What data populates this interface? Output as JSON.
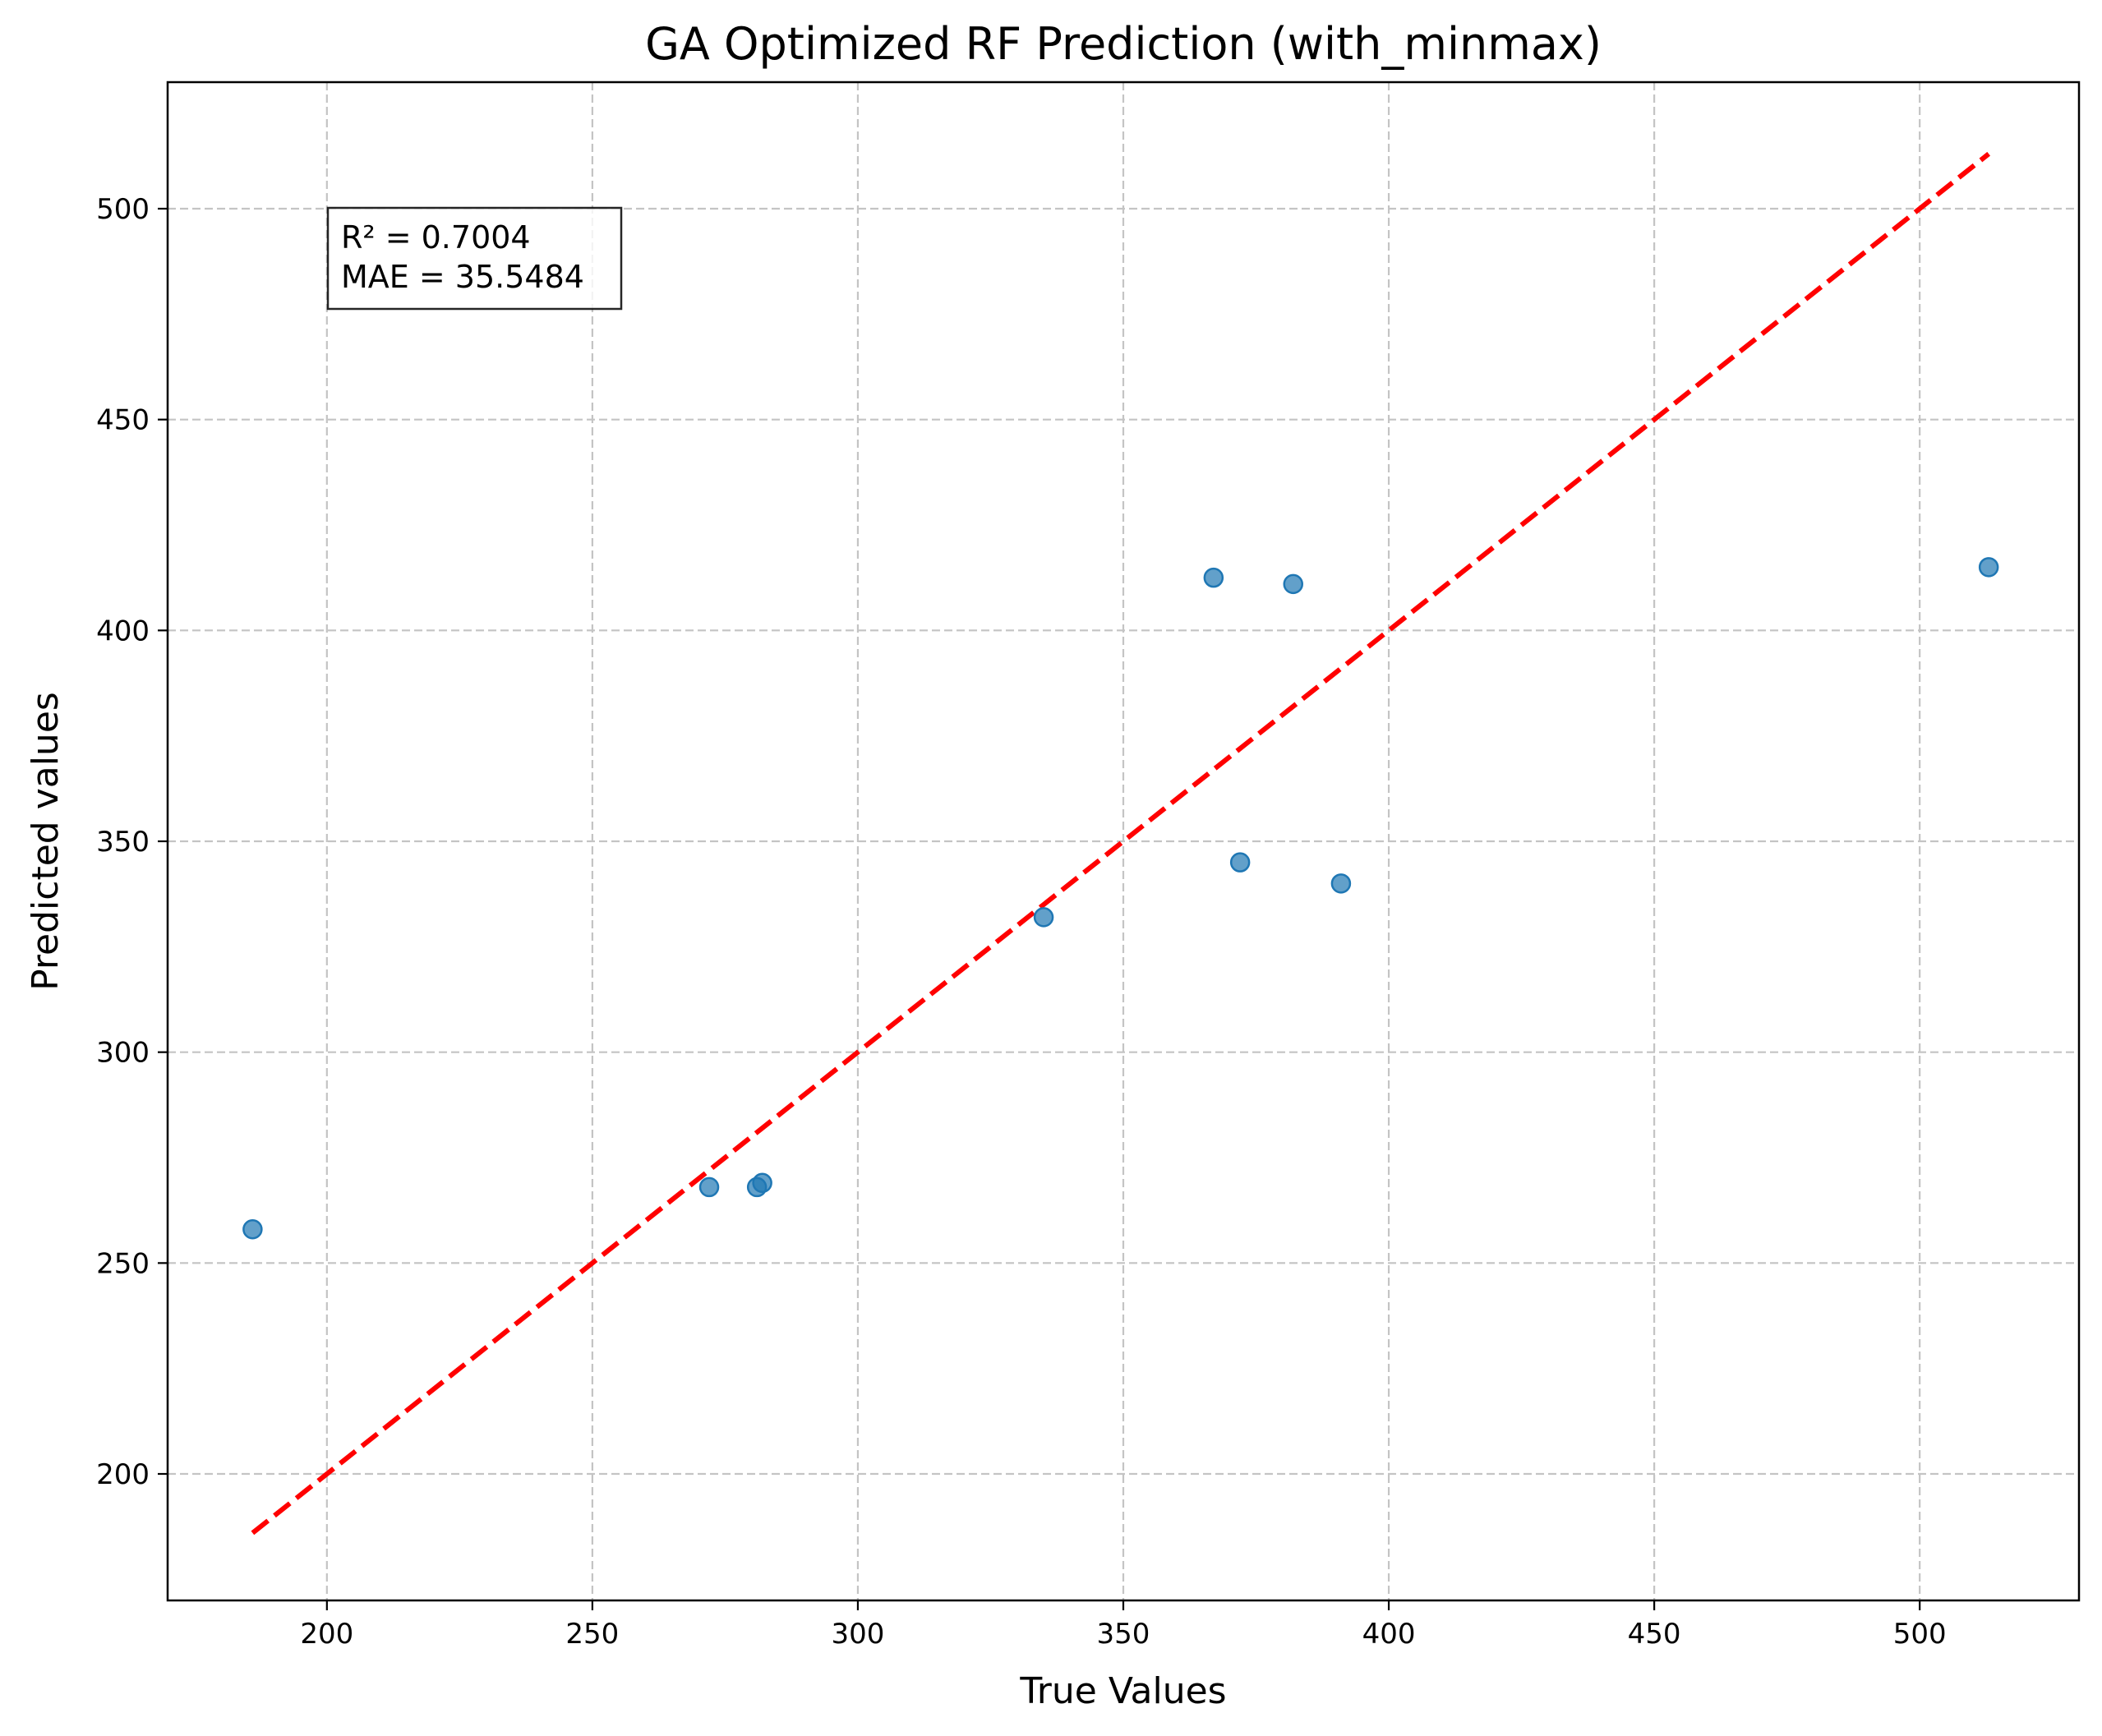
{
  "chart_data": {
    "type": "scatter",
    "title": "GA Optimized RF Prediction (with_minmax)",
    "xlabel": "True Values",
    "ylabel": "Predicted values",
    "xlim": [
      170,
      530
    ],
    "ylim": [
      170,
      530
    ],
    "xticks": [
      200,
      250,
      300,
      350,
      400,
      450,
      500
    ],
    "yticks": [
      200,
      250,
      300,
      350,
      400,
      450,
      500
    ],
    "grid": true,
    "grid_style": "dashed",
    "points": [
      {
        "x": 186,
        "y": 258
      },
      {
        "x": 272,
        "y": 268
      },
      {
        "x": 281,
        "y": 268
      },
      {
        "x": 282,
        "y": 269
      },
      {
        "x": 335,
        "y": 332
      },
      {
        "x": 367,
        "y": 412.5
      },
      {
        "x": 372,
        "y": 345
      },
      {
        "x": 382,
        "y": 411
      },
      {
        "x": 391,
        "y": 340
      },
      {
        "x": 513,
        "y": 415
      }
    ],
    "reference_line": {
      "x": [
        186,
        513
      ],
      "y": [
        186,
        513
      ],
      "style": "dashed"
    },
    "annotations": [
      "R² = 0.7004",
      "MAE = 35.5484"
    ],
    "colors": {
      "points": "#1f77b4",
      "reference_line": "#ff0000",
      "grid": "#c4c4c4"
    }
  }
}
